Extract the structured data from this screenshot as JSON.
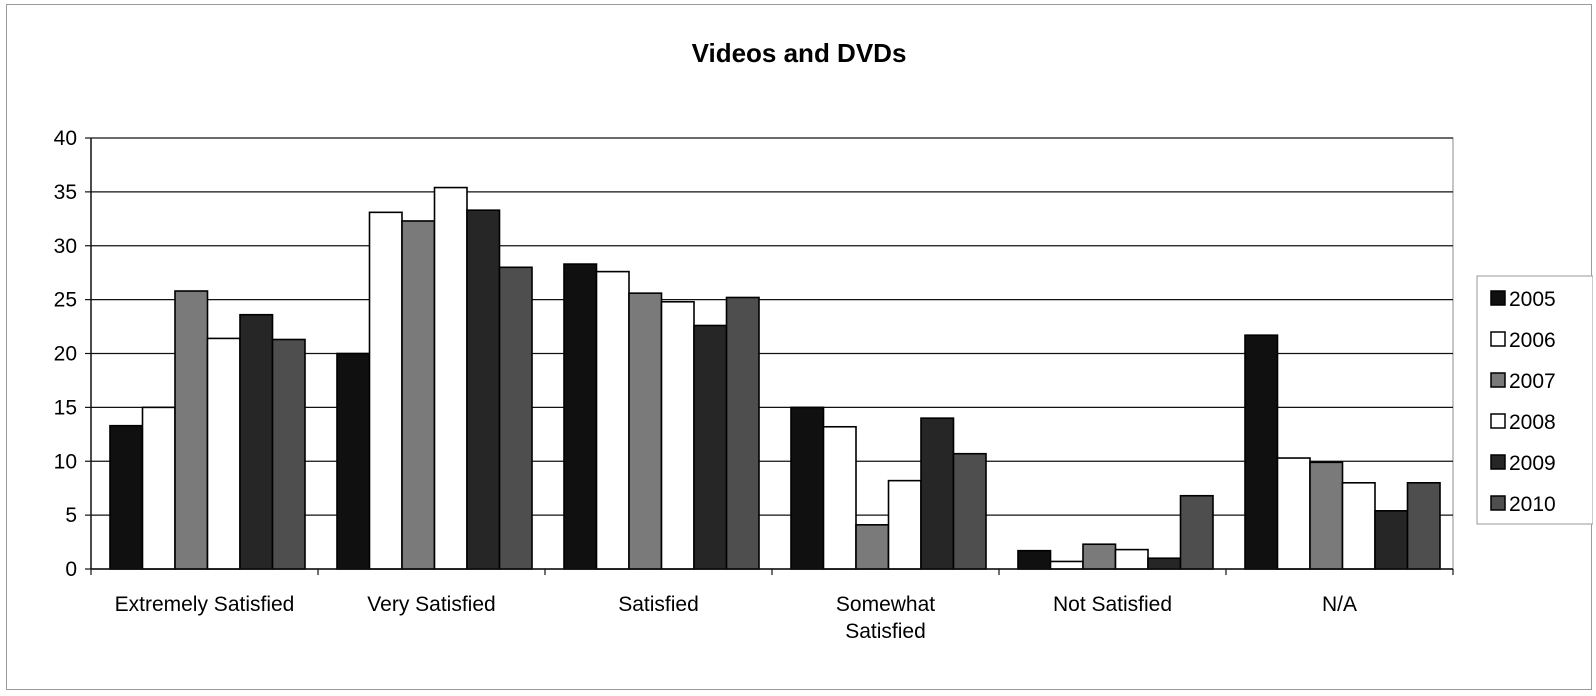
{
  "chart_data": {
    "type": "bar",
    "title": "Videos and DVDs",
    "xlabel": "",
    "ylabel": "",
    "ylim": [
      0,
      40
    ],
    "y_ticks": [
      0,
      5,
      10,
      15,
      20,
      25,
      30,
      35,
      40
    ],
    "grid": "horizontal",
    "legend_position": "right",
    "categories": [
      [
        "Extremely Satisfied"
      ],
      [
        "Very Satisfied"
      ],
      [
        "Satisfied"
      ],
      [
        "Somewhat",
        "Satisfied"
      ],
      [
        "Not Satisfied"
      ],
      [
        "N/A"
      ]
    ],
    "series": [
      {
        "name": "2005",
        "color": "#101010",
        "values": [
          13.3,
          20.0,
          28.3,
          15.0,
          1.7,
          21.7
        ]
      },
      {
        "name": "2006",
        "color": "#ffffff",
        "values": [
          15.0,
          33.1,
          27.6,
          13.2,
          0.7,
          10.3
        ]
      },
      {
        "name": "2007",
        "color": "#7a7a7a",
        "values": [
          25.8,
          32.3,
          25.6,
          4.1,
          2.3,
          9.9
        ]
      },
      {
        "name": "2008",
        "color": "#ffffff",
        "values": [
          21.4,
          35.4,
          24.8,
          8.2,
          1.8,
          8.0
        ]
      },
      {
        "name": "2009",
        "color": "#262626",
        "values": [
          23.6,
          33.3,
          22.6,
          14.0,
          1.0,
          5.4
        ]
      },
      {
        "name": "2010",
        "color": "#4e4e4e",
        "values": [
          21.3,
          28.0,
          25.2,
          10.7,
          6.8,
          8.0
        ]
      }
    ]
  }
}
